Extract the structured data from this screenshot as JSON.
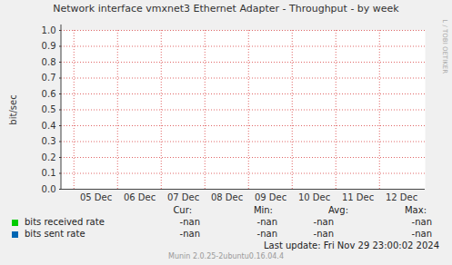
{
  "chart_data": {
    "type": "line",
    "title": "Network interface vmxnet3 Ethernet Adapter - Throughput - by week",
    "y_label": "bit/sec",
    "categories": [
      "05 Dec",
      "06 Dec",
      "07 Dec",
      "08 Dec",
      "09 Dec",
      "10 Dec",
      "11 Dec",
      "12 Dec"
    ],
    "series": [
      {
        "name": "bits received rate",
        "color": "#00cc00",
        "values": [
          null,
          null,
          null,
          null,
          null,
          null,
          null,
          null
        ],
        "stats": [
          "-nan",
          "-nan",
          "-nan",
          "-nan"
        ]
      },
      {
        "name": "bits sent rate",
        "color": "#0066b3",
        "values": [
          null,
          null,
          null,
          null,
          null,
          null,
          null,
          null
        ],
        "stats": [
          "-nan",
          "-nan",
          "-nan",
          "-nan"
        ]
      }
    ],
    "ylim": [
      0,
      1
    ],
    "yticks": [
      {
        "value": 0,
        "label": "0.0"
      },
      0.1,
      0.2,
      0.3,
      0.4,
      0.5,
      0.6,
      0.7,
      0.8,
      0.9,
      {
        "value": 1,
        "label": "1.0"
      }
    ],
    "grid": true,
    "legend": "bottom",
    "stats_header": [
      "Cur:",
      "Min:",
      "Avg:",
      "Max:"
    ],
    "footer": "Last update: Fri Nov 29 23:00:02 2024",
    "credit": "Munin 2.0.25-2ubuntu0.16.04.4",
    "watermark": "RRDTOOL / TOBI OETIKER"
  }
}
